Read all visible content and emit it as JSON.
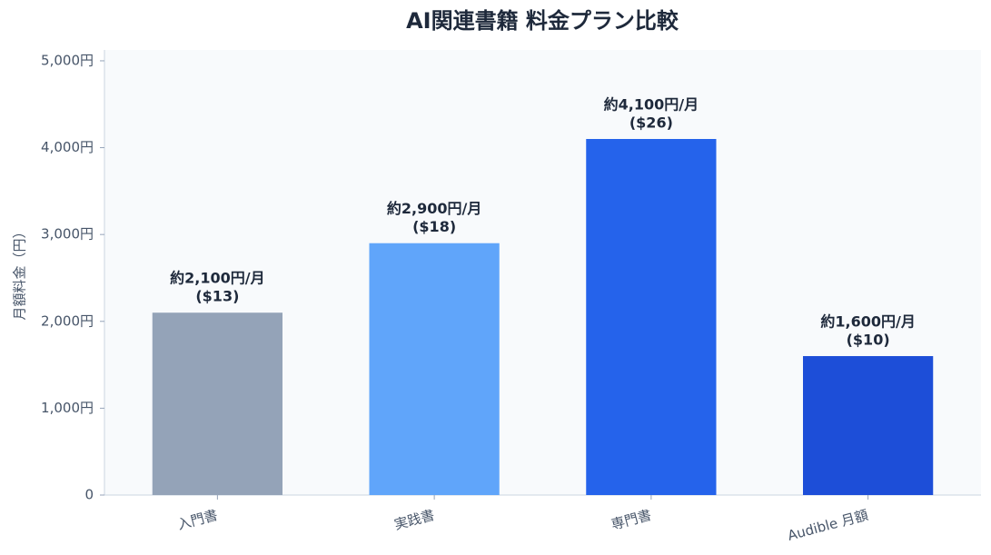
{
  "chart_data": {
    "type": "bar",
    "title": "AI関連書籍 料金プラン比較",
    "y_label": "月額料金（円）",
    "categories": [
      "入門書",
      "実践書",
      "専門書",
      "Audible 月額"
    ],
    "values": [
      2100,
      2900,
      4100,
      1600
    ],
    "value_labels": [
      [
        "約2,100円/月",
        "($13)"
      ],
      [
        "約2,900円/月",
        "($18)"
      ],
      [
        "約4,100円/月",
        "($26)"
      ],
      [
        "約1,600円/月",
        "($10)"
      ]
    ],
    "colors": [
      "#94a3b8",
      "#60a5fa",
      "#2563eb",
      "#1d4ed8"
    ],
    "ylim": [
      0,
      5125
    ],
    "yticks": [
      0,
      {
        "value": 1000,
        "label": "1,000円"
      },
      {
        "value": 2000,
        "label": "2,000円"
      },
      {
        "value": 3000,
        "label": "3,000円"
      },
      {
        "value": 4000,
        "label": "4,000円"
      },
      {
        "value": 5000,
        "label": "5,000円"
      }
    ],
    "grid": false
  }
}
